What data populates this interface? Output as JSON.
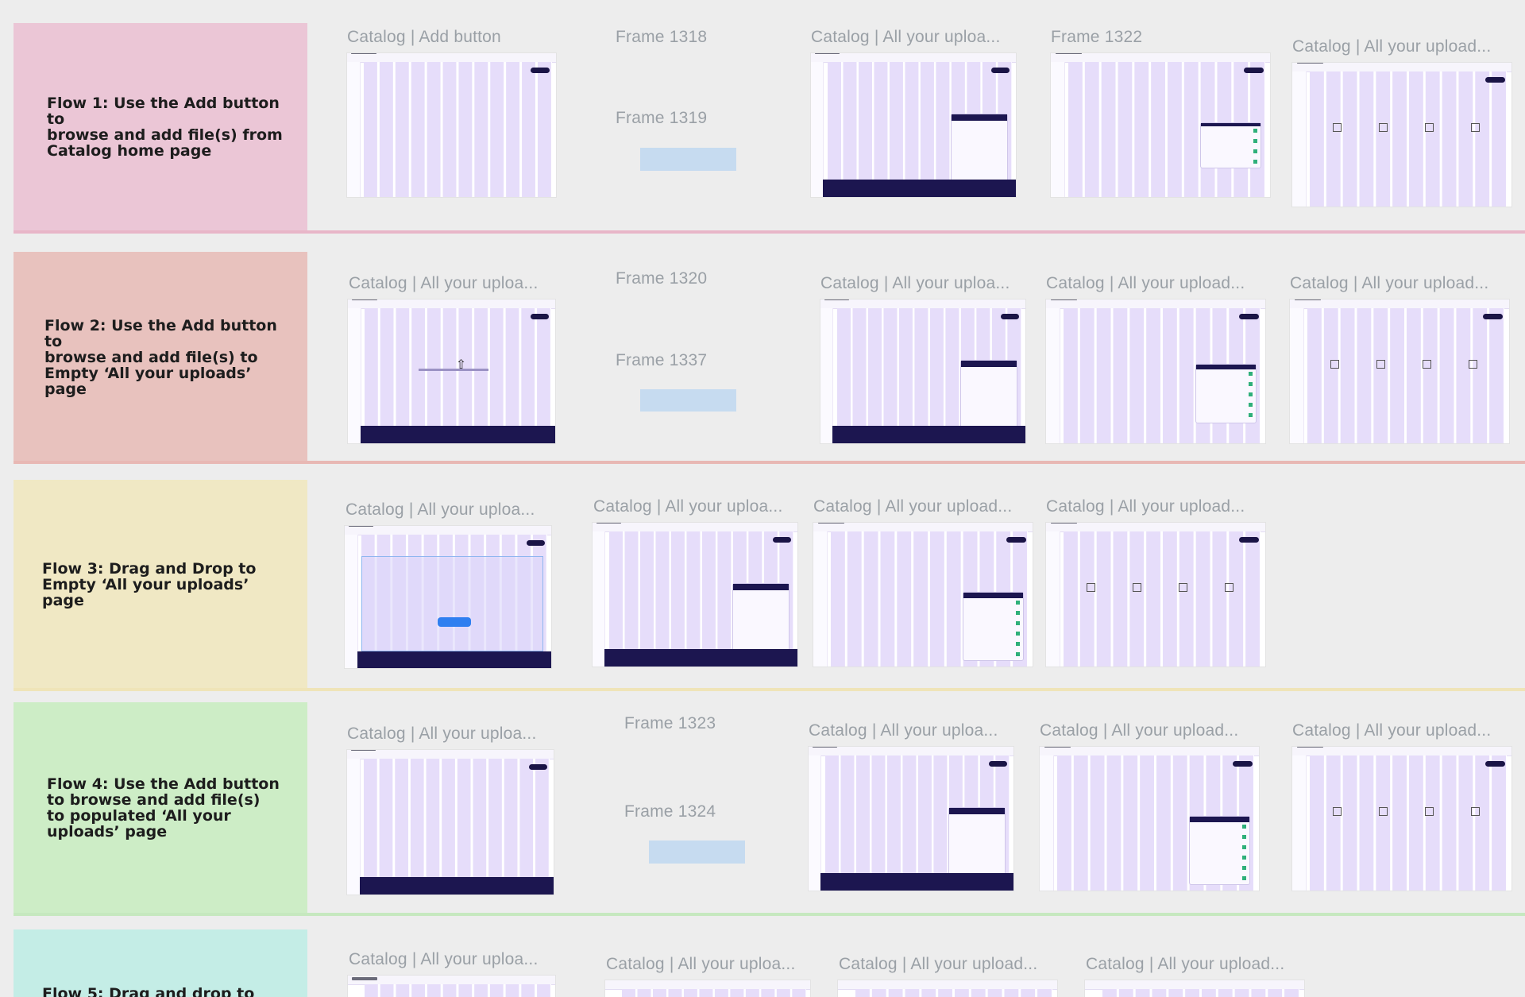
{
  "flows": [
    {
      "id": "flow-1",
      "title": "Flow 1: Use the Add button to\nbrowse and add file(s) from\nCatalog home page",
      "card_color": "#ebc6d6",
      "line_color": "#e8b6c8",
      "labels": [
        "Catalog | Add button",
        "Frame 1318",
        "Frame 1319",
        "Catalog | All your uploa...",
        "Frame 1322",
        "Catalog | All your upload..."
      ]
    },
    {
      "id": "flow-2",
      "title": "Flow 2: Use the Add button to\nbrowse and add file(s) to\nEmpty ‘All your uploads’ page",
      "card_color": "#e8c2be",
      "line_color": "#e8b8b4",
      "labels": [
        "Catalog | All your uploa...",
        "Frame 1320",
        "Frame 1337",
        "Catalog | All your uploa...",
        "Catalog | All your upload...",
        "Catalog | All your upload..."
      ]
    },
    {
      "id": "flow-3",
      "title": "Flow 3: Drag and Drop to\nEmpty ‘All your uploads’\npage",
      "card_color": "#f0e8c4",
      "line_color": "#efe4b8",
      "labels": [
        "Catalog | All your uploa...",
        "Catalog | All your uploa...",
        "Catalog | All your upload...",
        "Catalog | All your upload..."
      ]
    },
    {
      "id": "flow-4",
      "title": "Flow 4: Use the Add button\nto browse and add file(s)\nto populated ‘All your\nuploads’ page",
      "card_color": "#cdedc6",
      "line_color": "#c6e8bf",
      "labels": [
        "Catalog | All your uploa...",
        "Frame 1323",
        "Frame 1324",
        "Catalog | All your uploa...",
        "Catalog | All your upload...",
        "Catalog | All your upload..."
      ]
    },
    {
      "id": "flow-5",
      "title": "Flow 5: Drag and drop to",
      "card_color": "#c4ede6",
      "line_color": "#c4ede6",
      "labels": [
        "Catalog | All your uploa...",
        "Catalog | All your uploa...",
        "Catalog | All your upload...",
        "Catalog | All your upload..."
      ]
    }
  ]
}
